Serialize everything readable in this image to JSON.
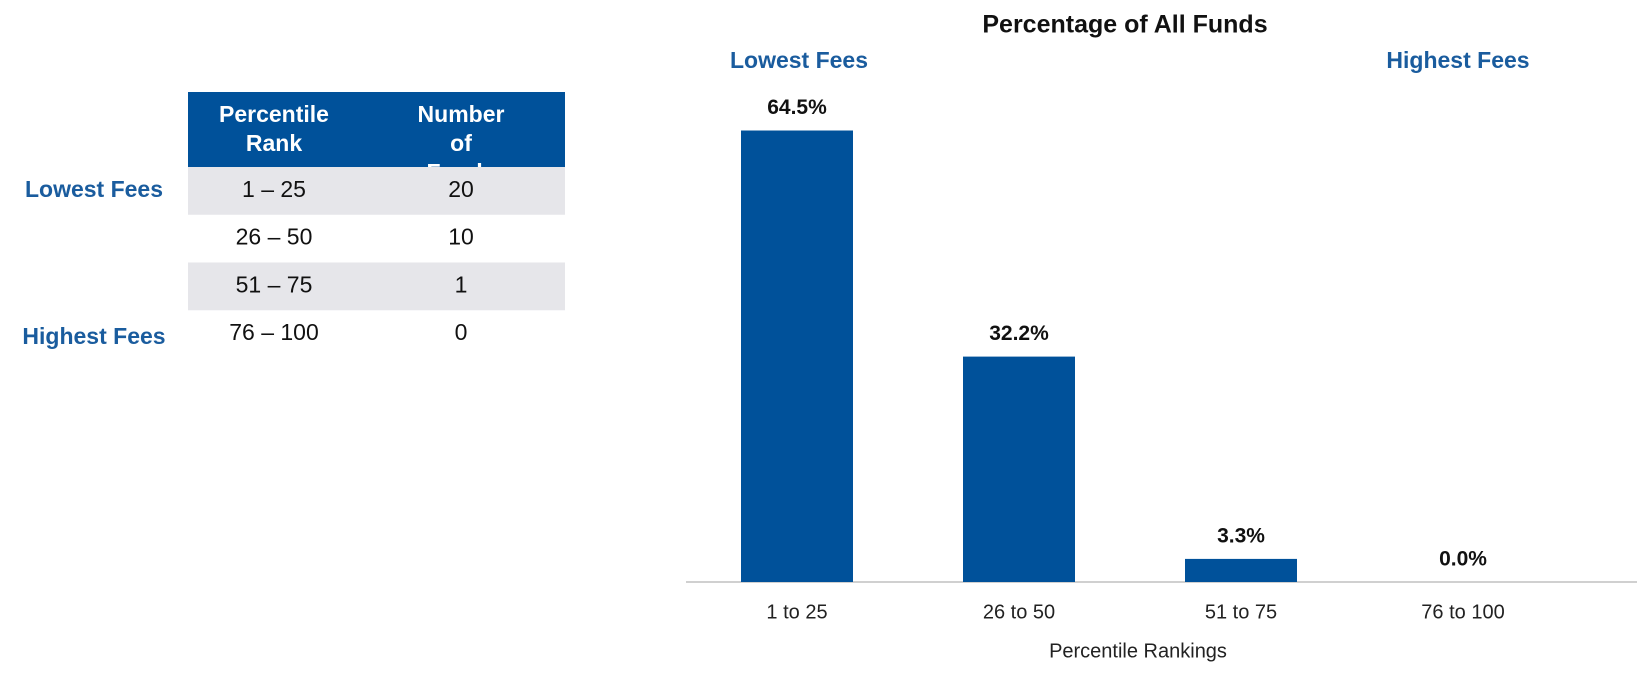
{
  "table": {
    "headers": [
      "Percentile Rank",
      "Number of Funds"
    ],
    "rows": [
      [
        "1 – 25",
        20
      ],
      [
        "26 – 50",
        10
      ],
      [
        "51 – 75",
        1
      ],
      [
        "76 – 100",
        0
      ]
    ],
    "row_labels": [
      "Lowest Fees",
      null,
      null,
      "Highest Fees"
    ]
  },
  "chart_data": {
    "type": "bar",
    "title": "Percentage of All Funds",
    "annotations": [
      "Lowest Fees",
      "Highest Fees"
    ],
    "categories": [
      "1 to 25",
      "26 to 50",
      "51 to 75",
      "76 to 100"
    ],
    "values": [
      64.5,
      32.2,
      3.3,
      0.0
    ],
    "value_labels": [
      "64.5%",
      "32.2%",
      "3.3%",
      "0.0%"
    ],
    "xlabel": "Percentile Rankings",
    "color": "#00519a",
    "ylim": [
      0,
      70
    ]
  }
}
